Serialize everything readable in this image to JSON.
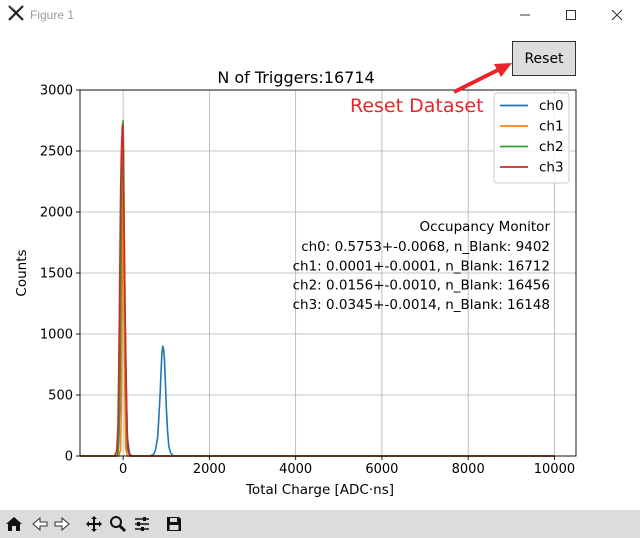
{
  "window": {
    "title": "Figure 1",
    "app_icon": "matplotlib-x-icon"
  },
  "reset_button": {
    "label": "Reset"
  },
  "annotation": {
    "text": "Reset Dataset",
    "color": "#e8262a"
  },
  "chart_data": {
    "type": "line",
    "title": "N of Triggers:16714",
    "xlabel": "Total Charge [ADC·ns]",
    "ylabel": "Counts",
    "xlim": [
      -1000,
      10500
    ],
    "ylim": [
      0,
      3000
    ],
    "xticks": [
      0,
      2000,
      4000,
      6000,
      8000,
      10000
    ],
    "yticks": [
      0,
      500,
      1000,
      1500,
      2000,
      2500,
      3000
    ],
    "grid": true,
    "legend_position": "top-right",
    "series": [
      {
        "name": "ch0",
        "color": "#1f77b4",
        "x": [
          -1000,
          -200,
          -150,
          -120,
          -100,
          -80,
          -60,
          -40,
          -20,
          0,
          20,
          40,
          60,
          80,
          100,
          150,
          200,
          600,
          700,
          750,
          800,
          830,
          860,
          880,
          900,
          920,
          940,
          960,
          980,
          1000,
          1030,
          1060,
          1100,
          1150,
          1200,
          10000
        ],
        "y": [
          0,
          0,
          0,
          20,
          120,
          400,
          800,
          1200,
          1520,
          1650,
          1500,
          1200,
          900,
          450,
          150,
          20,
          0,
          0,
          10,
          50,
          150,
          320,
          520,
          700,
          840,
          900,
          870,
          780,
          600,
          400,
          200,
          80,
          25,
          5,
          0,
          0
        ]
      },
      {
        "name": "ch1",
        "color": "#ff7f0e",
        "x": [
          -1000,
          -100,
          -60,
          -40,
          -20,
          -10,
          0,
          10,
          20,
          40,
          60,
          100,
          10000
        ],
        "y": [
          0,
          0,
          50,
          400,
          1500,
          2350,
          2650,
          2400,
          1600,
          500,
          60,
          0,
          0
        ]
      },
      {
        "name": "ch2",
        "color": "#2ca02c",
        "x": [
          -1000,
          -150,
          -120,
          -100,
          -80,
          -60,
          -40,
          -20,
          -10,
          0,
          10,
          20,
          40,
          60,
          80,
          100,
          150,
          10000
        ],
        "y": [
          0,
          0,
          30,
          200,
          600,
          1200,
          1900,
          2450,
          2700,
          2750,
          2500,
          2000,
          1300,
          700,
          250,
          60,
          0,
          0
        ]
      },
      {
        "name": "ch3",
        "color": "#d62728",
        "x": [
          -1000,
          -200,
          -150,
          -120,
          -100,
          -80,
          -60,
          -40,
          -20,
          -10,
          0,
          10,
          20,
          40,
          60,
          80,
          100,
          120,
          150,
          200,
          10000
        ],
        "y": [
          0,
          0,
          40,
          250,
          750,
          1400,
          2100,
          2500,
          2700,
          2720,
          2600,
          2300,
          1900,
          1300,
          750,
          400,
          150,
          40,
          10,
          0,
          0
        ]
      }
    ],
    "annotation_block": {
      "heading": "Occupancy Monitor",
      "lines": [
        "ch0: 0.5753+-0.0068, n_Blank: 9402",
        "ch1: 0.0001+-0.0001, n_Blank: 16712",
        "ch2: 0.0156+-0.0010, n_Blank: 16456",
        "ch3: 0.0345+-0.0014, n_Blank: 16148"
      ]
    }
  },
  "toolbar": {
    "items": [
      "home-icon",
      "back-icon",
      "forward-icon",
      "pan-icon",
      "zoom-icon",
      "configure-subplots-icon",
      "save-icon"
    ]
  }
}
